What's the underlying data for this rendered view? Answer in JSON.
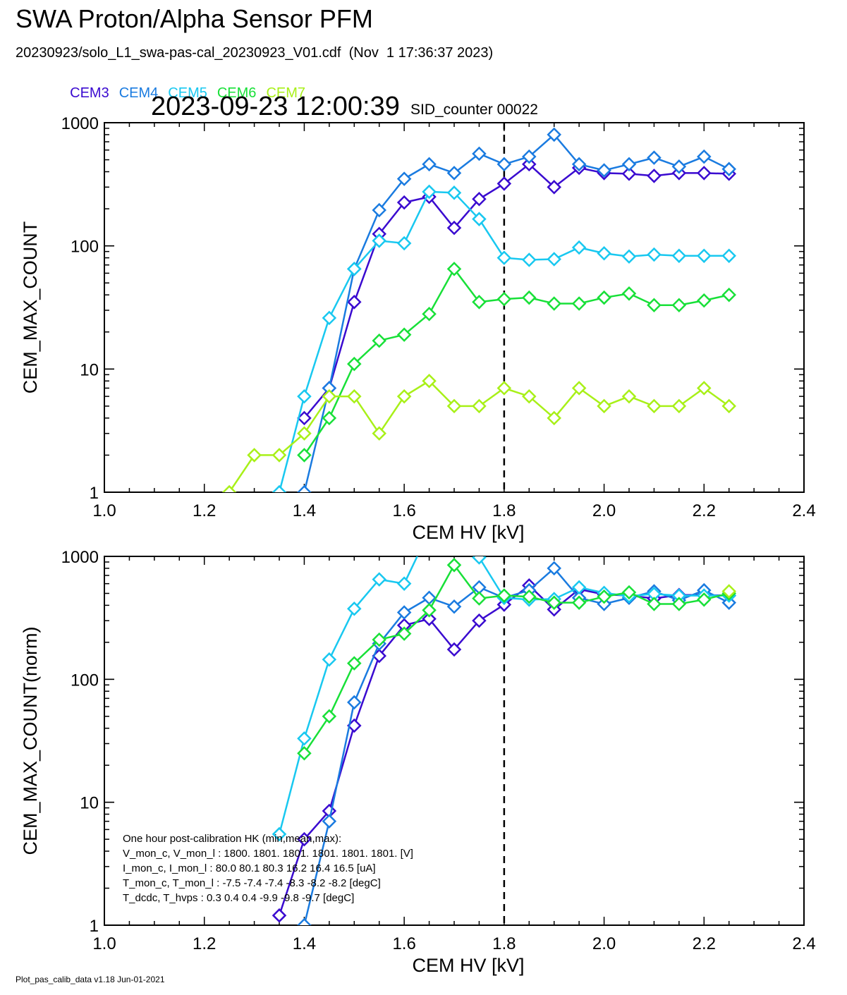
{
  "title": "SWA Proton/Alpha Sensor PFM",
  "subtitle": "20230923/solo_L1_swa-pas-cal_20230923_V01.cdf  (Nov  1 17:36:37 2023)",
  "timestamp": "2023-09-23 12:00:39",
  "sid_counter": "SID_counter 00022",
  "footer": "Plot_pas_calib_data v1.18 Jun-01-2021",
  "legend": [
    {
      "name": "CEM3",
      "color": "#3a0ad0"
    },
    {
      "name": "CEM4",
      "color": "#1a7be0"
    },
    {
      "name": "CEM5",
      "color": "#18c8f0"
    },
    {
      "name": "CEM6",
      "color": "#18e038"
    },
    {
      "name": "CEM7",
      "color": "#a8f018"
    }
  ],
  "hk_box": {
    "lines": [
      "One hour post-calibration HK (min,mean,max):",
      "V_mon_c, V_mon_l :   1800.  1801.  1801.     1801.  1801.  1801. [V]",
      "I_mon_c,  I_mon_l :     80.0   80.1   80.3       16.2   16.4   16.5  [uA]",
      "T_mon_c, T_mon_l :    -7.5   -7.4   -7.4        -8.3   -8.2   -8.2  [degC]",
      "T_dcdc,    T_hvps :       0.3    0.4    0.4          -9.9   -9.8   -9.7  [degC]"
    ]
  },
  "chart_data": [
    {
      "type": "line",
      "title": "",
      "xlabel": "CEM HV [kV]",
      "ylabel": "CEM_MAX_COUNT",
      "xlim": [
        1.0,
        2.4
      ],
      "ylim": [
        1,
        1000
      ],
      "yscale": "log",
      "xticks": [
        "1.0",
        "1.2",
        "1.4",
        "1.6",
        "1.8",
        "2.0",
        "2.2",
        "2.4"
      ],
      "yticks": [
        "1",
        "10",
        "100",
        "1000"
      ],
      "vline": 1.8,
      "x": [
        1.25,
        1.3,
        1.35,
        1.4,
        1.45,
        1.5,
        1.55,
        1.6,
        1.65,
        1.7,
        1.75,
        1.8,
        1.85,
        1.9,
        1.95,
        2.0,
        2.05,
        2.1,
        2.15,
        2.2,
        2.25
      ],
      "series": [
        {
          "name": "CEM3",
          "color": "#3a0ad0",
          "values": [
            null,
            null,
            null,
            4,
            7,
            35,
            125,
            225,
            250,
            140,
            240,
            320,
            460,
            300,
            430,
            390,
            385,
            370,
            390,
            390,
            385
          ]
        },
        {
          "name": "CEM4",
          "color": "#1a7be0",
          "values": [
            null,
            null,
            0.5,
            1,
            7,
            65,
            195,
            350,
            460,
            390,
            560,
            460,
            530,
            800,
            460,
            410,
            460,
            520,
            440,
            530,
            420
          ]
        },
        {
          "name": "CEM5",
          "color": "#18c8f0",
          "values": [
            null,
            null,
            1,
            6,
            26,
            65,
            110,
            105,
            275,
            270,
            165,
            80,
            77,
            78,
            97,
            87,
            82,
            85,
            83,
            83,
            83
          ]
        },
        {
          "name": "CEM6",
          "color": "#18e038",
          "values": [
            null,
            null,
            null,
            2,
            4,
            11,
            17,
            19,
            28,
            65,
            35,
            37,
            38,
            34,
            34,
            38,
            41,
            33,
            33,
            36,
            40
          ]
        },
        {
          "name": "CEM7",
          "color": "#a8f018",
          "values": [
            1,
            2,
            2,
            3,
            6,
            6,
            3,
            6,
            8,
            5,
            5,
            7,
            6,
            4,
            7,
            5,
            6,
            5,
            5,
            7,
            5
          ]
        }
      ]
    },
    {
      "type": "line",
      "title": "",
      "xlabel": "CEM HV [kV]",
      "ylabel": "CEM_MAX_COUNT(norm)",
      "xlim": [
        1.0,
        2.4
      ],
      "ylim": [
        1,
        1000
      ],
      "yscale": "log",
      "xticks": [
        "1.0",
        "1.2",
        "1.4",
        "1.6",
        "1.8",
        "2.0",
        "2.2",
        "2.4"
      ],
      "yticks": [
        "1",
        "10",
        "100",
        "1000"
      ],
      "vline": 1.8,
      "x": [
        1.25,
        1.3,
        1.35,
        1.4,
        1.45,
        1.5,
        1.55,
        1.6,
        1.65,
        1.7,
        1.75,
        1.8,
        1.85,
        1.9,
        1.95,
        2.0,
        2.05,
        2.1,
        2.15,
        2.2,
        2.25
      ],
      "series": [
        {
          "name": "CEM3",
          "color": "#3a0ad0",
          "values": [
            null,
            null,
            1.2,
            5,
            8.5,
            42,
            155,
            275,
            310,
            175,
            300,
            405,
            580,
            370,
            540,
            490,
            480,
            455,
            485,
            485,
            480
          ]
        },
        {
          "name": "CEM4",
          "color": "#1a7be0",
          "values": [
            null,
            null,
            0.5,
            1,
            7,
            65,
            195,
            350,
            460,
            390,
            560,
            460,
            530,
            800,
            460,
            410,
            460,
            520,
            440,
            530,
            420
          ]
        },
        {
          "name": "CEM5",
          "color": "#18c8f0",
          "values": [
            null,
            null,
            5.5,
            33,
            145,
            375,
            650,
            600,
            1600,
            1570,
            980,
            460,
            445,
            450,
            560,
            505,
            475,
            495,
            480,
            480,
            480
          ]
        },
        {
          "name": "CEM6",
          "color": "#18e038",
          "values": [
            null,
            null,
            null,
            25,
            50,
            135,
            210,
            235,
            365,
            850,
            455,
            480,
            470,
            420,
            420,
            470,
            510,
            410,
            410,
            445,
            500
          ]
        },
        {
          "name": "CEM7",
          "color": "#a8f018",
          "values": [
            null,
            null,
            null,
            null,
            null,
            null,
            null,
            null,
            null,
            null,
            null,
            null,
            null,
            null,
            null,
            null,
            null,
            null,
            null,
            null,
            520
          ]
        }
      ]
    }
  ]
}
